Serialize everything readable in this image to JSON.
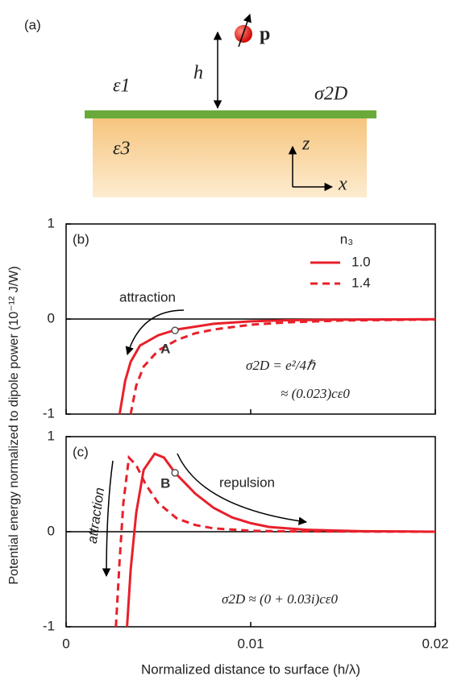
{
  "diagram": {
    "label": "(a)",
    "eps1": "ε1",
    "h": "h",
    "p": "p",
    "sigma": "σ2D",
    "eps3": "ε3",
    "z": "z",
    "x": "x"
  },
  "chart_data": [
    {
      "type": "line",
      "label": "(b)",
      "ylabel": "Potential energy normalized to dipole power  (10⁻¹² J/W)",
      "xlim": [
        0,
        0.02
      ],
      "ylim": [
        -1,
        1
      ],
      "yticks": [
        -1,
        0,
        1
      ],
      "legend_title": "n₃",
      "series": [
        {
          "name": "1.0",
          "color": "#e8202a",
          "style": "solid",
          "x": [
            0.0029,
            0.0032,
            0.0035,
            0.004,
            0.005,
            0.006,
            0.008,
            0.01,
            0.012,
            0.015,
            0.02
          ],
          "values": [
            -1,
            -0.65,
            -0.45,
            -0.28,
            -0.17,
            -0.11,
            -0.05,
            -0.025,
            -0.013,
            -0.006,
            -0.002
          ]
        },
        {
          "name": "1.4",
          "color": "#e8202a",
          "style": "dashed",
          "x": [
            0.0035,
            0.0038,
            0.0042,
            0.005,
            0.006,
            0.007,
            0.008,
            0.01,
            0.012,
            0.015,
            0.02
          ],
          "values": [
            -1,
            -0.7,
            -0.5,
            -0.33,
            -0.22,
            -0.15,
            -0.11,
            -0.06,
            -0.035,
            -0.015,
            -0.005
          ]
        }
      ],
      "markers": [
        {
          "label": "A",
          "x": 0.0059,
          "y": -0.12
        }
      ],
      "annotations": [
        "attraction",
        "σ2D = e²/4ℏ",
        "≈ (0.023)cε0"
      ]
    },
    {
      "type": "line",
      "label": "(c)",
      "xlabel": "Normalized distance to surface (h/λ)",
      "xlim": [
        0,
        0.02
      ],
      "ylim": [
        -1,
        1
      ],
      "yticks": [
        -1,
        0,
        1
      ],
      "xticks": [
        0,
        0.01,
        0.02
      ],
      "series": [
        {
          "name": "1.0",
          "color": "#e8202a",
          "style": "solid",
          "x": [
            0.0033,
            0.0035,
            0.0038,
            0.0042,
            0.0048,
            0.0053,
            0.0059,
            0.007,
            0.008,
            0.009,
            0.01,
            0.011,
            0.013,
            0.016,
            0.02
          ],
          "values": [
            -1,
            -0.4,
            0.2,
            0.65,
            0.82,
            0.78,
            0.62,
            0.4,
            0.25,
            0.15,
            0.09,
            0.05,
            0.02,
            0.005,
            0
          ]
        },
        {
          "name": "1.4",
          "color": "#e8202a",
          "style": "dashed",
          "x": [
            0.0027,
            0.0029,
            0.0031,
            0.0034,
            0.0038,
            0.0043,
            0.005,
            0.006,
            0.007,
            0.008,
            0.01,
            0.012,
            0.02
          ],
          "values": [
            -1,
            -0.3,
            0.3,
            0.78,
            0.7,
            0.5,
            0.3,
            0.14,
            0.07,
            0.035,
            0.01,
            0.003,
            0
          ]
        }
      ],
      "markers": [
        {
          "label": "B",
          "x": 0.0059,
          "y": 0.62
        }
      ],
      "annotations": [
        "attraction",
        "repulsion",
        "σ2D ≈ (0 + 0.03i)cε0"
      ]
    }
  ]
}
